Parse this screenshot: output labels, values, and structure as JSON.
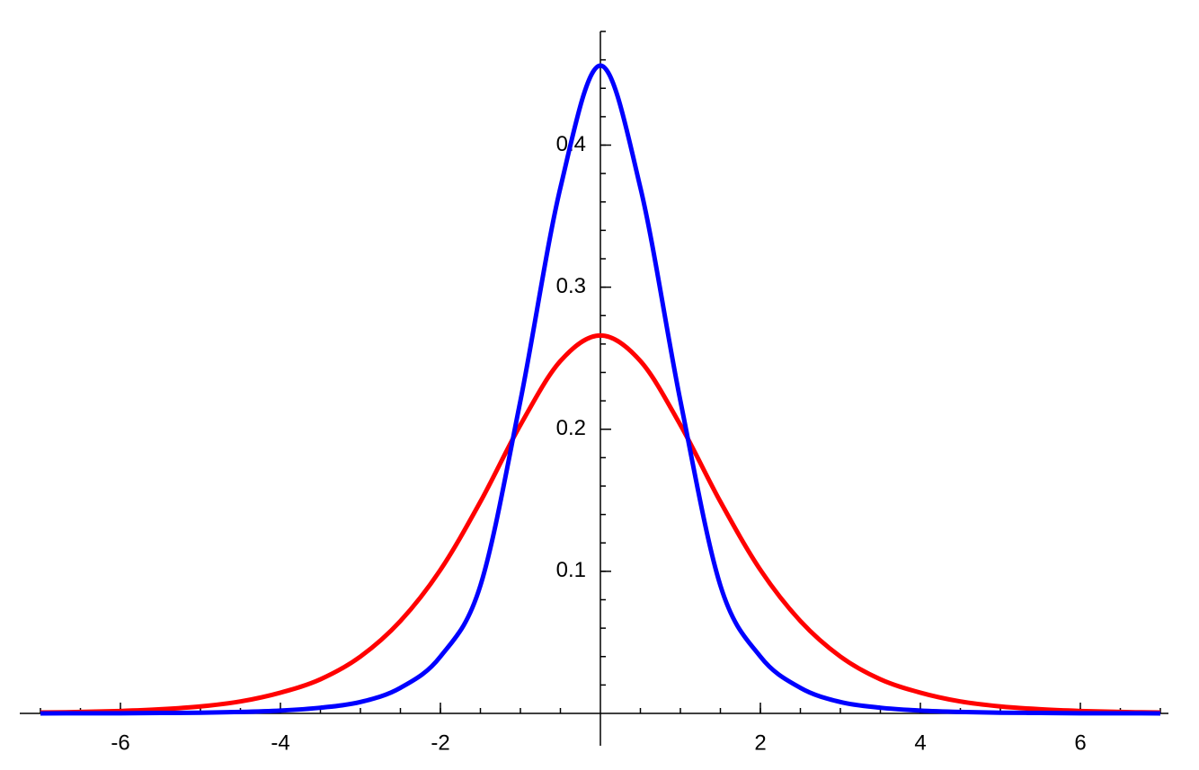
{
  "chart_data": {
    "type": "line",
    "x": [
      -7,
      -6.5,
      -6,
      -5.5,
      -5,
      -4.5,
      -4,
      -3.5,
      -3,
      -2.5,
      -2,
      -1.5,
      -1,
      -0.5,
      0,
      0.5,
      1,
      1.5,
      2,
      2.5,
      3,
      3.5,
      4,
      4.5,
      5,
      5.5,
      6,
      6.5,
      7
    ],
    "series": [
      {
        "color": "#0000ff",
        "values": [
          0,
          0.0001,
          0.0001,
          0.0003,
          0.0005,
          0.001,
          0.002,
          0.004,
          0.008,
          0.018,
          0.04,
          0.09,
          0.22,
          0.37,
          0.456,
          0.37,
          0.22,
          0.09,
          0.04,
          0.018,
          0.008,
          0.004,
          0.002,
          0.001,
          0.0005,
          0.0003,
          0.0001,
          0.0001,
          0
        ]
      },
      {
        "color": "#ff0000",
        "values": [
          0.0006,
          0.001,
          0.0017,
          0.0029,
          0.0049,
          0.0084,
          0.0146,
          0.024,
          0.04,
          0.065,
          0.101,
          0.149,
          0.203,
          0.248,
          0.266,
          0.248,
          0.203,
          0.149,
          0.101,
          0.065,
          0.04,
          0.024,
          0.0146,
          0.0084,
          0.0049,
          0.0029,
          0.0017,
          0.001,
          0.0006
        ]
      }
    ],
    "xlim": [
      -7,
      7
    ],
    "ylim": [
      0,
      0.48
    ],
    "xticks": [
      -6,
      -4,
      -2,
      2,
      4,
      6
    ],
    "yticks": [
      0.1,
      0.2,
      0.3,
      0.4
    ]
  }
}
